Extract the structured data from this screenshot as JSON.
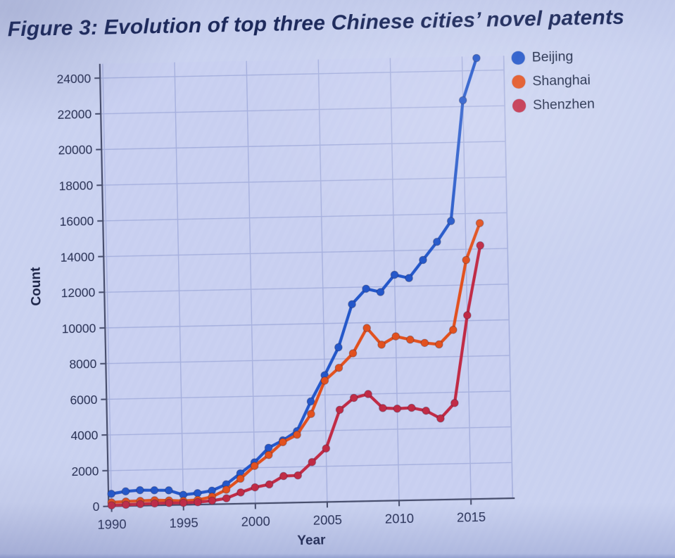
{
  "figure": {
    "title": "Figure 3: Evolution of top three Chinese cities’ novel patents"
  },
  "chart_data": {
    "type": "line",
    "title": "Figure 3: Evolution of top three Chinese cities’ novel patents",
    "xlabel": "Year",
    "ylabel": "Count",
    "x": [
      1990,
      1991,
      1992,
      1993,
      1994,
      1995,
      1996,
      1997,
      1998,
      1999,
      2000,
      2001,
      2002,
      2003,
      2004,
      2005,
      2006,
      2007,
      2008,
      2009,
      2010,
      2011,
      2012,
      2013,
      2014,
      2015,
      2016
    ],
    "series": [
      {
        "name": "Beijing",
        "color": "#2256c9",
        "values": [
          700,
          820,
          870,
          850,
          830,
          560,
          640,
          760,
          1100,
          1700,
          2300,
          3100,
          3500,
          4000,
          5650,
          7100,
          8650,
          11050,
          11900,
          11700,
          12650,
          12450,
          13450,
          14450,
          15600,
          22350,
          24700
        ]
      },
      {
        "name": "Shanghai",
        "color": "#e2501d",
        "values": [
          220,
          250,
          270,
          290,
          260,
          220,
          260,
          420,
          800,
          1400,
          2100,
          2700,
          3400,
          3800,
          4950,
          6800,
          7500,
          8300,
          9700,
          8750,
          9200,
          9000,
          8800,
          8700,
          9500,
          13400,
          15450
        ]
      },
      {
        "name": "Shenzhen",
        "color": "#c02944",
        "values": [
          50,
          70,
          90,
          110,
          120,
          110,
          130,
          200,
          320,
          630,
          900,
          1050,
          1500,
          1520,
          2250,
          3000,
          5150,
          5800,
          6000,
          5200,
          5150,
          5180,
          5000,
          4550,
          5400,
          10300,
          14200
        ]
      }
    ],
    "xticks": [
      1990,
      1995,
      2000,
      2005,
      2010,
      2015
    ],
    "yticks": [
      0,
      2000,
      4000,
      6000,
      8000,
      10000,
      12000,
      14000,
      16000,
      18000,
      20000,
      22000,
      24000
    ],
    "xlim": [
      1989.8,
      2017.9
    ],
    "ylim": [
      0,
      24800
    ],
    "grid": true,
    "legend_position": "top-right",
    "palette": {
      "background": "#c7cff1",
      "grid": "#a6b0de",
      "axis": "#454c6b",
      "tick_text": "#262e52",
      "axis_label_text": "#1a2246"
    }
  }
}
